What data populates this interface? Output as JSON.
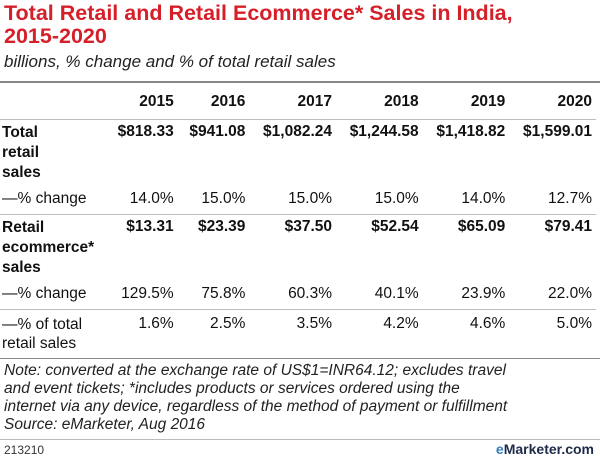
{
  "chart_data": {
    "type": "table",
    "title_line1": "Total Retail and Retail Ecommerce* Sales in India,",
    "title_line2": "2015-2020",
    "subtitle": "billions, % change and % of total retail sales",
    "columns": [
      "2015",
      "2016",
      "2017",
      "2018",
      "2019",
      "2020"
    ],
    "rows": [
      {
        "label_lines": [
          "Total",
          "retail",
          "sales"
        ],
        "values": [
          "$818.33",
          "$941.08",
          "$1,082.24",
          "$1,244.58",
          "$1,418.82",
          "$1,599.01"
        ]
      },
      {
        "label_lines": [
          "—% change"
        ],
        "values": [
          "14.0%",
          "15.0%",
          "15.0%",
          "15.0%",
          "14.0%",
          "12.7%"
        ]
      },
      {
        "label_lines": [
          "Retail",
          "ecommerce*",
          "sales"
        ],
        "values": [
          "$13.31",
          "$23.39",
          "$37.50",
          "$52.54",
          "$65.09",
          "$79.41"
        ]
      },
      {
        "label_lines": [
          "—% change"
        ],
        "values": [
          "129.5%",
          "75.8%",
          "60.3%",
          "40.1%",
          "23.9%",
          "22.0%"
        ]
      },
      {
        "label_lines": [
          "—% of total",
          "retail sales"
        ],
        "values": [
          "1.6%",
          "2.5%",
          "3.5%",
          "4.2%",
          "4.6%",
          "5.0%"
        ]
      }
    ],
    "note_lines": [
      "Note: converted at the exchange rate of US$1=INR64.12; excludes travel",
      "and event tickets; *includes products or services ordered using the",
      "internet via any device, regardless of the method of payment or fulfillment",
      "Source: eMarketer, Aug 2016"
    ],
    "chart_id": "213210",
    "brand": {
      "e": "e",
      "name": "Marketer",
      "domain": ".com"
    }
  },
  "colors": {
    "title": "#d5202a",
    "rule": "#888888",
    "separator": "#bdbdbd",
    "brand": "#1c2b49",
    "brand_accent": "#2f7fc1"
  }
}
